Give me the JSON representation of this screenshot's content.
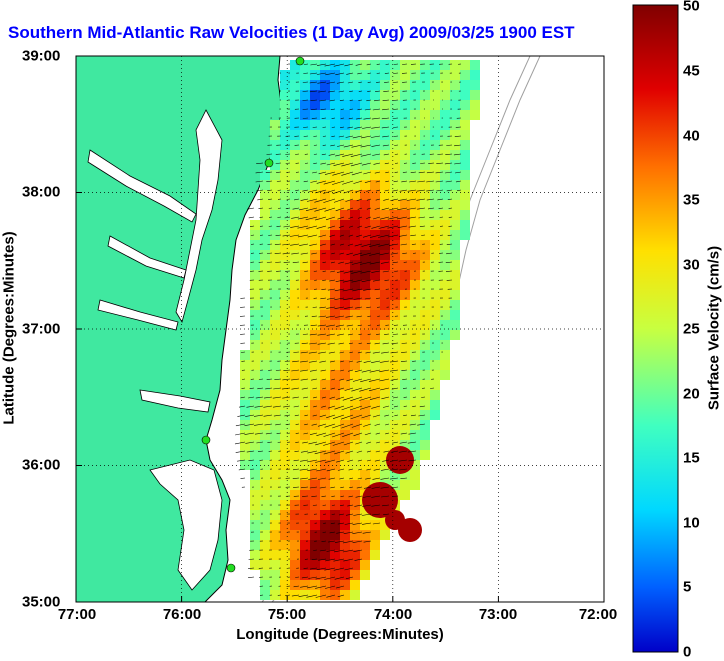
{
  "title": "Southern Mid-Atlantic Raw Velocities (1 Day Avg) 2009/03/25 1900 EST",
  "x_axis": {
    "label": "Longitude (Degrees:Minutes)",
    "ticks": [
      "77:00",
      "76:00",
      "75:00",
      "74:00",
      "73:00",
      "72:00"
    ],
    "range": [
      -77,
      -72
    ]
  },
  "y_axis": {
    "label": "Latitude (Degrees:Minutes)",
    "ticks": [
      "39:00",
      "38:00",
      "37:00",
      "36:00",
      "35:00"
    ],
    "range": [
      35,
      39
    ]
  },
  "colorbar": {
    "label": "Surface Velocity (cm/s)",
    "ticks": [
      "50",
      "45",
      "40",
      "35",
      "30",
      "25",
      "20",
      "15",
      "10",
      "5",
      "0"
    ],
    "range": [
      0,
      50
    ],
    "colormap": "jet"
  },
  "colors": {
    "land": "#40e8a0",
    "coast_line": "#000000",
    "shelf_contours": "#a0a0a0",
    "station_markers": "#22dd22",
    "title": "#0000ff"
  },
  "grid": "dotted",
  "symbols": {
    "velocity_vectors": "black arrows",
    "radar_stations": "green circles"
  }
}
